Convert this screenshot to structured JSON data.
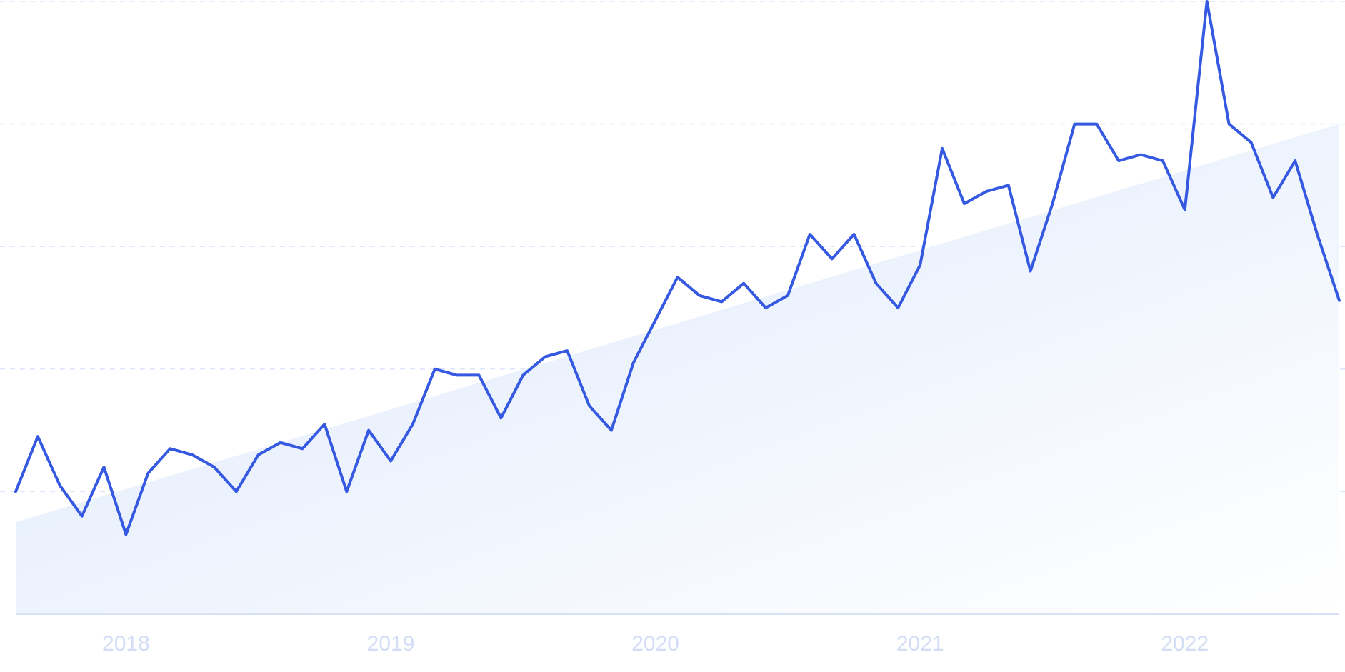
{
  "colors": {
    "line": "#3559e0",
    "trend_fill_top": "#dce8fb",
    "trend_fill_end": "#ffffff",
    "grid": "#dde6fa",
    "baseline": "#d7e2f5",
    "tick_label": "#d3ddf5"
  },
  "chart_data": {
    "type": "line",
    "title": "",
    "xlabel": "",
    "ylabel": "",
    "grid": true,
    "x_tick_labels": [
      "2018",
      "2019",
      "2020",
      "2021",
      "2022"
    ],
    "y_range": [
      0,
      100
    ],
    "series": [
      {
        "x": [
          "2017-08",
          "2017-09",
          "2017-10",
          "2017-11",
          "2017-12",
          "2018-01",
          "2018-02",
          "2018-03",
          "2018-04",
          "2018-05",
          "2018-06",
          "2018-07",
          "2018-08",
          "2018-09",
          "2018-10",
          "2018-11",
          "2018-12",
          "2019-01",
          "2019-02",
          "2019-03",
          "2019-04",
          "2019-05",
          "2019-06",
          "2019-07",
          "2019-08",
          "2019-09",
          "2019-10",
          "2019-11",
          "2019-12",
          "2020-01",
          "2020-02",
          "2020-03",
          "2020-04",
          "2020-05",
          "2020-06",
          "2020-07",
          "2020-08",
          "2020-09",
          "2020-10",
          "2020-11",
          "2020-12",
          "2021-01",
          "2021-02",
          "2021-03",
          "2021-04",
          "2021-05",
          "2021-06",
          "2021-07",
          "2021-08",
          "2021-09",
          "2021-10",
          "2021-11",
          "2021-12",
          "2022-01",
          "2022-02",
          "2022-03",
          "2022-04",
          "2022-05",
          "2022-06",
          "2022-07",
          "2022-08"
        ],
        "values": [
          20,
          29,
          21,
          16,
          24,
          13,
          23,
          27,
          26,
          24,
          20,
          26,
          28,
          27,
          31,
          20,
          30,
          25,
          31,
          40,
          39,
          39,
          32,
          39,
          42,
          43,
          34,
          30,
          41,
          48,
          55,
          52,
          51,
          54,
          50,
          52,
          62,
          58,
          62,
          54,
          50,
          57,
          76,
          67,
          69,
          70,
          56,
          67,
          80,
          80,
          74,
          75,
          74,
          66,
          100,
          80,
          77,
          68,
          74,
          62,
          null
        ]
      }
    ],
    "trend": {
      "start": 15,
      "end": 80
    }
  }
}
